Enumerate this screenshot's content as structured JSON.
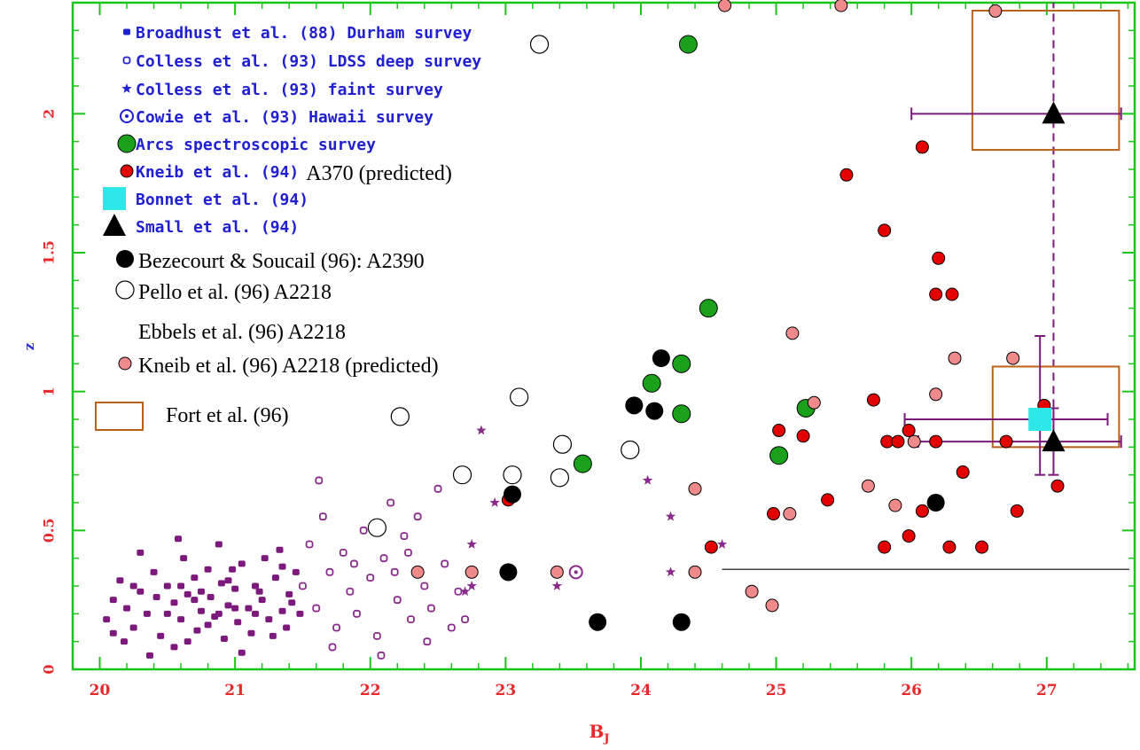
{
  "chart_data": {
    "type": "scatter",
    "title": "",
    "xlabel": "B_J",
    "xlabel_main": "B",
    "xlabel_sub": "J",
    "ylabel": "z",
    "xlim": [
      19.8,
      27.65
    ],
    "ylim": [
      0,
      2.4
    ],
    "x_ticks": [
      "20",
      "21",
      "22",
      "23",
      "24",
      "25",
      "26",
      "27"
    ],
    "y_ticks": [
      "0",
      "0.5",
      "1",
      "1.5",
      "2"
    ],
    "legend": [
      {
        "label": "Broadhust et al. (88) Durham survey",
        "marker": "small-dot",
        "style": "blue"
      },
      {
        "label": "Colless et al. (93) LDSS deep survey",
        "marker": "small-ring",
        "style": "blue"
      },
      {
        "label": "Colless et al. (93) faint survey",
        "marker": "star",
        "style": "blue"
      },
      {
        "label": "Cowie et al. (93) Hawaii survey",
        "marker": "dotted-circle",
        "style": "blue"
      },
      {
        "label": "Arcs spectroscopic survey",
        "marker": "green-circle",
        "style": "blue"
      },
      {
        "label": "Kneib et al. (94)",
        "label_extra": "A370 (predicted)",
        "marker": "red-circle",
        "style": "blue"
      },
      {
        "label": "Bonnet et al. (94)",
        "marker": "cyan-square",
        "style": "blue"
      },
      {
        "label": "Small et al. (94)",
        "marker": "black-triangle",
        "style": "blue"
      },
      {
        "label": "Bezecourt &  Soucail (96): A2390",
        "marker": "black-circle",
        "style": "black"
      },
      {
        "label": "Pello et al. (96)  A2218",
        "marker": "open-circle",
        "style": "black"
      },
      {
        "label": "Ebbels et al. (96) A2218",
        "marker": "none",
        "style": "black"
      },
      {
        "label": "Kneib et  al. (96)  A2218 (predicted)",
        "marker": "pink-circle",
        "style": "black"
      },
      {
        "label": "Fort et al. (96)",
        "marker": "brown-box",
        "style": "black"
      }
    ],
    "series": [
      {
        "name": "Broadhust et al. (88) Durham survey",
        "marker": "small-dot",
        "color": "#7b1a7b",
        "points": [
          [
            20.05,
            0.18
          ],
          [
            20.1,
            0.25
          ],
          [
            20.15,
            0.32
          ],
          [
            20.2,
            0.22
          ],
          [
            20.25,
            0.15
          ],
          [
            20.3,
            0.28
          ],
          [
            20.35,
            0.2
          ],
          [
            20.4,
            0.35
          ],
          [
            20.45,
            0.12
          ],
          [
            20.5,
            0.3
          ],
          [
            20.55,
            0.24
          ],
          [
            20.6,
            0.18
          ],
          [
            20.62,
            0.4
          ],
          [
            20.65,
            0.27
          ],
          [
            20.7,
            0.33
          ],
          [
            20.72,
            0.14
          ],
          [
            20.75,
            0.21
          ],
          [
            20.8,
            0.36
          ],
          [
            20.82,
            0.26
          ],
          [
            20.85,
            0.19
          ],
          [
            20.9,
            0.31
          ],
          [
            20.92,
            0.11
          ],
          [
            20.95,
            0.23
          ],
          [
            21.0,
            0.29
          ],
          [
            21.02,
            0.17
          ],
          [
            21.05,
            0.38
          ],
          [
            21.1,
            0.22
          ],
          [
            21.12,
            0.13
          ],
          [
            21.15,
            0.3
          ],
          [
            21.2,
            0.25
          ],
          [
            21.22,
            0.4
          ],
          [
            21.25,
            0.18
          ],
          [
            21.3,
            0.33
          ],
          [
            21.35,
            0.21
          ],
          [
            21.38,
            0.15
          ],
          [
            21.4,
            0.27
          ],
          [
            21.45,
            0.35
          ],
          [
            21.48,
            0.2
          ],
          [
            20.3,
            0.42
          ],
          [
            20.55,
            0.08
          ],
          [
            20.88,
            0.45
          ],
          [
            21.05,
            0.06
          ],
          [
            20.18,
            0.1
          ],
          [
            20.7,
            0.25
          ],
          [
            20.95,
            0.32
          ],
          [
            21.15,
            0.2
          ],
          [
            20.42,
            0.26
          ],
          [
            20.6,
            0.3
          ],
          [
            21.28,
            0.12
          ],
          [
            20.8,
            0.16
          ],
          [
            21.35,
            0.37
          ],
          [
            20.25,
            0.3
          ],
          [
            20.5,
            0.2
          ],
          [
            21.0,
            0.22
          ],
          [
            20.65,
            0.1
          ],
          [
            21.42,
            0.24
          ],
          [
            20.1,
            0.13
          ],
          [
            20.37,
            0.05
          ],
          [
            20.58,
            0.47
          ],
          [
            20.98,
            0.36
          ],
          [
            21.18,
            0.28
          ],
          [
            21.33,
            0.43
          ],
          [
            20.75,
            0.28
          ],
          [
            20.88,
            0.2
          ]
        ]
      },
      {
        "name": "Colless et al. (93) LDSS deep survey",
        "marker": "small-ring",
        "color": "#8a2a8a",
        "points": [
          [
            21.5,
            0.3
          ],
          [
            21.55,
            0.45
          ],
          [
            21.6,
            0.22
          ],
          [
            21.65,
            0.55
          ],
          [
            21.7,
            0.35
          ],
          [
            21.75,
            0.15
          ],
          [
            21.8,
            0.42
          ],
          [
            21.85,
            0.28
          ],
          [
            21.9,
            0.2
          ],
          [
            21.95,
            0.5
          ],
          [
            22.0,
            0.33
          ],
          [
            22.05,
            0.12
          ],
          [
            22.1,
            0.4
          ],
          [
            22.15,
            0.6
          ],
          [
            22.2,
            0.25
          ],
          [
            22.25,
            0.48
          ],
          [
            22.3,
            0.18
          ],
          [
            22.35,
            0.55
          ],
          [
            22.4,
            0.3
          ],
          [
            22.45,
            0.22
          ],
          [
            22.5,
            0.65
          ],
          [
            22.55,
            0.38
          ],
          [
            22.6,
            0.15
          ],
          [
            22.65,
            0.28
          ],
          [
            22.7,
            0.18
          ],
          [
            21.62,
            0.68
          ],
          [
            21.72,
            0.08
          ],
          [
            22.08,
            0.05
          ],
          [
            22.42,
            0.1
          ],
          [
            22.18,
            0.35
          ],
          [
            21.88,
            0.38
          ],
          [
            22.28,
            0.42
          ]
        ]
      },
      {
        "name": "Colless et al. (93) faint survey",
        "marker": "star",
        "color": "#8a2a8a",
        "points": [
          [
            22.7,
            0.28
          ],
          [
            22.75,
            0.45
          ],
          [
            22.75,
            0.3
          ],
          [
            22.82,
            0.86
          ],
          [
            22.92,
            0.6
          ],
          [
            23.38,
            0.3
          ],
          [
            24.05,
            0.68
          ],
          [
            24.22,
            0.55
          ],
          [
            24.22,
            0.35
          ],
          [
            24.6,
            0.45
          ]
        ]
      },
      {
        "name": "Cowie et al. (93) Hawaii survey",
        "marker": "dotted-circle",
        "color": "#8a2a8a",
        "points": [
          [
            23.52,
            0.35
          ]
        ]
      },
      {
        "name": "Arcs spectroscopic survey",
        "marker": "green-circle",
        "color": "#1aa01a",
        "points": [
          [
            24.35,
            2.25
          ],
          [
            24.5,
            1.3
          ],
          [
            24.08,
            1.03
          ],
          [
            24.3,
            1.1
          ],
          [
            24.3,
            0.92
          ],
          [
            23.57,
            0.74
          ],
          [
            25.22,
            0.94
          ],
          [
            25.02,
            0.77
          ]
        ]
      },
      {
        "name": "Kneib et al. (94)",
        "marker": "red-circle",
        "color": "#e40000",
        "points": [
          [
            25.52,
            1.78
          ],
          [
            26.08,
            1.88
          ],
          [
            25.8,
            1.58
          ],
          [
            26.2,
            1.48
          ],
          [
            26.18,
            1.35
          ],
          [
            26.3,
            1.35
          ],
          [
            25.72,
            0.97
          ],
          [
            25.82,
            0.82
          ],
          [
            25.9,
            0.82
          ],
          [
            25.98,
            0.86
          ],
          [
            26.18,
            0.82
          ],
          [
            25.02,
            0.86
          ],
          [
            25.2,
            0.84
          ],
          [
            24.98,
            0.56
          ],
          [
            25.38,
            0.61
          ],
          [
            26.08,
            0.57
          ],
          [
            26.38,
            0.71
          ],
          [
            26.28,
            0.44
          ],
          [
            26.52,
            0.44
          ],
          [
            25.8,
            0.44
          ],
          [
            25.98,
            0.48
          ],
          [
            26.7,
            0.82
          ],
          [
            26.78,
            0.57
          ],
          [
            27.08,
            0.66
          ],
          [
            26.98,
            0.95
          ],
          [
            24.52,
            0.44
          ],
          [
            23.02,
            0.61
          ]
        ]
      },
      {
        "name": "Bonnet et al. (94)",
        "marker": "cyan-square",
        "color": "#2de8e8",
        "points": [
          [
            26.95,
            0.9
          ]
        ]
      },
      {
        "name": "Small et al. (94)",
        "marker": "black-triangle",
        "color": "#000000",
        "points": [
          [
            27.05,
            2.0
          ],
          [
            27.05,
            0.82
          ]
        ]
      },
      {
        "name": "Bezecourt &  Soucail (96): A2390",
        "marker": "black-circle",
        "color": "#000000",
        "points": [
          [
            24.15,
            1.12
          ],
          [
            23.95,
            0.95
          ],
          [
            24.1,
            0.93
          ],
          [
            23.05,
            0.63
          ],
          [
            23.02,
            0.35
          ],
          [
            23.68,
            0.17
          ],
          [
            24.3,
            0.17
          ],
          [
            26.18,
            0.6
          ]
        ]
      },
      {
        "name": "Pello et al. (96)  A2218",
        "marker": "open-circle",
        "color": "#000000",
        "points": [
          [
            23.25,
            2.25
          ],
          [
            22.22,
            0.91
          ],
          [
            23.1,
            0.98
          ],
          [
            23.42,
            0.81
          ],
          [
            23.92,
            0.79
          ],
          [
            22.68,
            0.7
          ],
          [
            23.05,
            0.7
          ],
          [
            23.4,
            0.69
          ],
          [
            22.05,
            0.51
          ]
        ]
      },
      {
        "name": "Kneib et  al. (96)  A2218 (predicted)",
        "marker": "pink-circle",
        "color": "#f08a8a",
        "points": [
          [
            24.62,
            2.39
          ],
          [
            25.48,
            2.39
          ],
          [
            26.62,
            2.37
          ],
          [
            25.12,
            1.21
          ],
          [
            26.32,
            1.12
          ],
          [
            26.75,
            1.12
          ],
          [
            26.18,
            0.99
          ],
          [
            25.28,
            0.96
          ],
          [
            26.02,
            0.82
          ],
          [
            25.68,
            0.66
          ],
          [
            25.88,
            0.59
          ],
          [
            25.1,
            0.56
          ],
          [
            24.4,
            0.65
          ],
          [
            22.75,
            0.35
          ],
          [
            22.35,
            0.35
          ],
          [
            23.38,
            0.35
          ],
          [
            24.4,
            0.35
          ],
          [
            24.82,
            0.28
          ],
          [
            24.97,
            0.23
          ]
        ]
      }
    ],
    "error_bars": [
      {
        "x": 27.05,
        "y": 2.0,
        "xerr": [
          1.05,
          0.5
        ],
        "yerr": [
          0,
          0
        ]
      },
      {
        "x": 26.95,
        "y": 0.9,
        "xerr": [
          1.0,
          0.5
        ],
        "yerr": [
          0.2,
          0.3
        ]
      },
      {
        "x": 27.05,
        "y": 0.82,
        "xerr": [
          1.0,
          0.5
        ],
        "yerr": [
          0.12,
          0.12
        ]
      }
    ],
    "boxes": [
      {
        "name": "Fort et al. (96)",
        "x": [
          26.45,
          27.6
        ],
        "y": [
          1.87,
          2.4
        ]
      },
      {
        "name": "Fort et al. (96)",
        "x": [
          26.6,
          27.6
        ],
        "y": [
          0.8,
          1.09
        ]
      }
    ],
    "dashed_line": {
      "x": 27.05,
      "y": [
        0.8,
        2.4
      ]
    },
    "horizontal_line": {
      "y": 0.36,
      "x": [
        24.6,
        27.65
      ]
    }
  }
}
